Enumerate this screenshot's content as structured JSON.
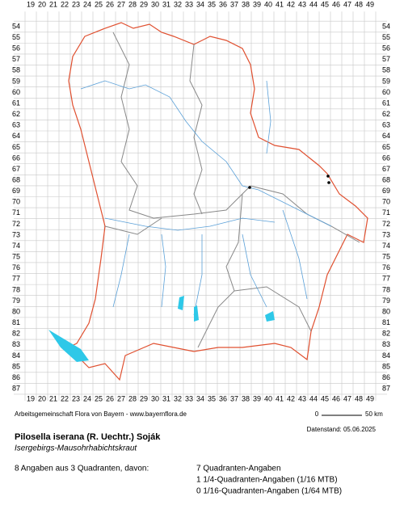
{
  "grid": {
    "columns": [
      "19",
      "20",
      "21",
      "22",
      "23",
      "24",
      "25",
      "26",
      "27",
      "28",
      "29",
      "30",
      "31",
      "32",
      "33",
      "34",
      "35",
      "36",
      "37",
      "38",
      "39",
      "40",
      "41",
      "42",
      "43",
      "44",
      "45",
      "46",
      "47",
      "48",
      "49"
    ],
    "rows": [
      "54",
      "55",
      "56",
      "57",
      "58",
      "59",
      "60",
      "61",
      "62",
      "63",
      "64",
      "65",
      "66",
      "67",
      "68",
      "69",
      "70",
      "71",
      "72",
      "73",
      "74",
      "75",
      "76",
      "77",
      "78",
      "79",
      "80",
      "81",
      "82",
      "83",
      "84",
      "85",
      "86",
      "87"
    ]
  },
  "footer": {
    "credit": "Arbeitsgemeinschaft Flora von Bayern - www.bayernflora.de",
    "scale_start": "0",
    "scale_end": "50 km",
    "date": "Datenstand: 05.06.2025"
  },
  "species": {
    "name": "Pilosella iserana (R. Uechtr.) Soják",
    "common_name": "Isergebirgs-Mausohrhabichtskraut"
  },
  "summary": {
    "total": "8 Angaben aus 3 Quadranten, davon:",
    "lines": [
      "7 Quadranten-Angaben",
      "1 1/4-Quadranten-Angaben (1/16 MTB)",
      "0 1/16-Quadranten-Angaben (1/64 MTB)"
    ]
  }
}
